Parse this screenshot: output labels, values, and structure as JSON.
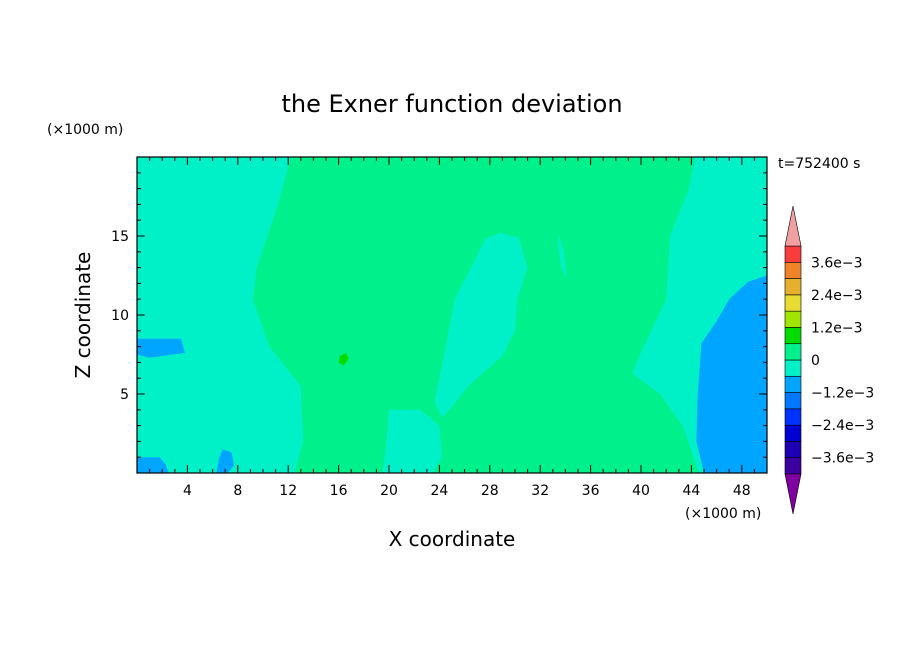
{
  "chart_data": {
    "type": "heatmap",
    "title": "the Exner function deviation",
    "xlabel": "X coordinate",
    "ylabel": "Z coordinate",
    "x_unit": "(×1000 m)",
    "z_unit": "(×1000 m)",
    "time_label": "t=752400 s",
    "xlim": [
      0,
      50
    ],
    "ylim": [
      0,
      20
    ],
    "x_ticks": [
      {
        "value": 4,
        "label": "4"
      },
      {
        "value": 8,
        "label": "8"
      },
      {
        "value": 12,
        "label": "12"
      },
      {
        "value": 16,
        "label": "16"
      },
      {
        "value": 20,
        "label": "20"
      },
      {
        "value": 24,
        "label": "24"
      },
      {
        "value": 28,
        "label": "28"
      },
      {
        "value": 32,
        "label": "32"
      },
      {
        "value": 36,
        "label": "36"
      },
      {
        "value": 40,
        "label": "40"
      },
      {
        "value": 44,
        "label": "44"
      },
      {
        "value": 48,
        "label": "48"
      }
    ],
    "y_ticks": [
      {
        "value": 5,
        "label": "5"
      },
      {
        "value": 10,
        "label": "10"
      },
      {
        "value": 15,
        "label": "15"
      }
    ],
    "colorbar": {
      "levels": [
        -0.0042,
        -0.0036,
        -0.003,
        -0.0024,
        -0.0018,
        -0.0012,
        -0.0006,
        0,
        0.0006,
        0.0012,
        0.0018,
        0.0024,
        0.003,
        0.0036,
        0.0042
      ],
      "colors": [
        "#7f00a0",
        "#3c00a0",
        "#1e00b4",
        "#0000d2",
        "#0032ff",
        "#0078ff",
        "#00a5ff",
        "#00f0c8",
        "#00f08c",
        "#00dc00",
        "#a0e600",
        "#e6dc32",
        "#e6af2d",
        "#f08228",
        "#fa3c3c",
        "#f0a0a0"
      ],
      "labels": [
        {
          "value": 0.0036,
          "label": "3.6e−3"
        },
        {
          "value": 0.0024,
          "label": "2.4e−3"
        },
        {
          "value": 0.0012,
          "label": "1.2e−3"
        },
        {
          "value": 0,
          "label": "0"
        },
        {
          "value": -0.0012,
          "label": "−1.2e−3"
        },
        {
          "value": -0.0024,
          "label": "−2.4e−3"
        },
        {
          "value": -0.0036,
          "label": "−3.6e−3"
        }
      ]
    },
    "regions": [
      {
        "level": 0,
        "points": [
          [
            0,
            20
          ],
          [
            12.2,
            20
          ],
          [
            11.2,
            17
          ],
          [
            9.5,
            13
          ],
          [
            9.2,
            11
          ],
          [
            10.5,
            8
          ],
          [
            13,
            5.5
          ],
          [
            13.2,
            2
          ],
          [
            12.5,
            0
          ],
          [
            0,
            0
          ]
        ]
      },
      {
        "level": 0,
        "points": [
          [
            44.3,
            20
          ],
          [
            50,
            20
          ],
          [
            50,
            0
          ],
          [
            44.6,
            0
          ],
          [
            43.3,
            3
          ],
          [
            41.5,
            5
          ],
          [
            39.3,
            6.3
          ],
          [
            40.2,
            8
          ],
          [
            42,
            11
          ],
          [
            42.3,
            15
          ],
          [
            43.8,
            18
          ]
        ]
      },
      {
        "level": 0,
        "points": [
          [
            28.8,
            15.2
          ],
          [
            30.3,
            14.9
          ],
          [
            31,
            13
          ],
          [
            30.2,
            11
          ],
          [
            30,
            9
          ],
          [
            29,
            7.4
          ],
          [
            27.4,
            6.3
          ],
          [
            26.3,
            5.5
          ],
          [
            25,
            4.2
          ],
          [
            24.2,
            3.5
          ],
          [
            23.6,
            4.5
          ],
          [
            24.5,
            8
          ],
          [
            25.2,
            11
          ],
          [
            26.5,
            13
          ],
          [
            27.6,
            14.8
          ]
        ]
      },
      {
        "level": 0,
        "points": [
          [
            20,
            4
          ],
          [
            22.5,
            4
          ],
          [
            24,
            3
          ],
          [
            24.2,
            1
          ],
          [
            23.5,
            0
          ],
          [
            19.5,
            0
          ],
          [
            19.8,
            2
          ]
        ]
      },
      {
        "level": 0,
        "points": [
          [
            33.5,
            15
          ],
          [
            33.9,
            14
          ],
          [
            34.1,
            12.3
          ],
          [
            33.7,
            13
          ],
          [
            33.4,
            14.5
          ]
        ]
      },
      {
        "level": -1,
        "points": [
          [
            50,
            12.5
          ],
          [
            48.5,
            12.1
          ],
          [
            47,
            11
          ],
          [
            46,
            9.6
          ],
          [
            44.8,
            8.2
          ],
          [
            44.5,
            5
          ],
          [
            44.4,
            2
          ],
          [
            45,
            0
          ],
          [
            50,
            0
          ]
        ]
      },
      {
        "level": -1,
        "points": [
          [
            0,
            8.5
          ],
          [
            3.5,
            8.5
          ],
          [
            3.8,
            7.6
          ],
          [
            1,
            7.3
          ],
          [
            0,
            7.5
          ]
        ]
      },
      {
        "level": -1,
        "points": [
          [
            0,
            1
          ],
          [
            1.8,
            1
          ],
          [
            2.3,
            0.5
          ],
          [
            2.5,
            0
          ],
          [
            0,
            0
          ]
        ]
      },
      {
        "level": -1,
        "points": [
          [
            6.8,
            1.5
          ],
          [
            7.5,
            1.3
          ],
          [
            7.7,
            0.5
          ],
          [
            7.2,
            0
          ],
          [
            6.3,
            0
          ],
          [
            6.5,
            0.9
          ]
        ]
      },
      {
        "level": 1,
        "points": [
          [
            14.3,
            12
          ],
          [
            16.5,
            12.5
          ],
          [
            18.3,
            12
          ],
          [
            19,
            9.5
          ],
          [
            18.5,
            7.3
          ],
          [
            18.5,
            4.5
          ],
          [
            19,
            3
          ],
          [
            19,
            0
          ],
          [
            14.8,
            0
          ],
          [
            14.8,
            2
          ],
          [
            14.5,
            4
          ],
          [
            13.8,
            6.5
          ],
          [
            12.5,
            9.5
          ],
          [
            13,
            11
          ]
        ]
      },
      {
        "level": 1,
        "points": [
          [
            36.6,
            7.3
          ],
          [
            37.5,
            7.2
          ],
          [
            38.1,
            6
          ],
          [
            38.2,
            4
          ],
          [
            39.6,
            3
          ],
          [
            40.7,
            2
          ],
          [
            41.5,
            1
          ],
          [
            41.8,
            0
          ],
          [
            36.4,
            0
          ],
          [
            36.5,
            2
          ],
          [
            36.2,
            4.5
          ],
          [
            35.8,
            5.8
          ]
        ]
      },
      {
        "level": 0,
        "points": [
          [
            5.8,
            4.1
          ],
          [
            6.5,
            4
          ],
          [
            6.7,
            3
          ],
          [
            6.1,
            2.6
          ],
          [
            5.6,
            3.2
          ]
        ]
      },
      {
        "level": 2,
        "points": [
          [
            16.1,
            7.4
          ],
          [
            16.6,
            7.6
          ],
          [
            16.8,
            7.2
          ],
          [
            16.4,
            6.8
          ],
          [
            16.0,
            7.0
          ]
        ]
      }
    ],
    "background_level": 1
  }
}
